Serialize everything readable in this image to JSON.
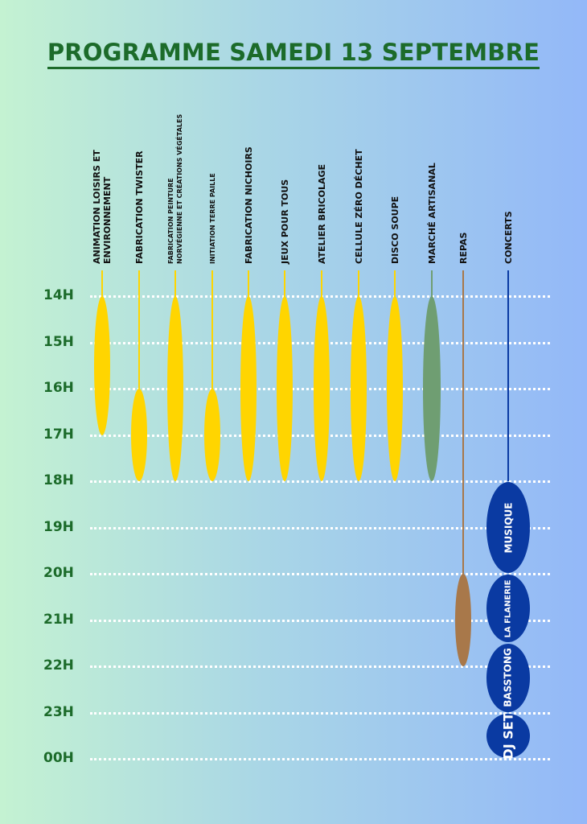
{
  "title": "PROGRAMME SAMEDI 13 SEPTEMBRE",
  "hours": [
    "14H",
    "15H",
    "16H",
    "17H",
    "18H",
    "19H",
    "20H",
    "21H",
    "22H",
    "23H",
    "00H"
  ],
  "activities": [
    {
      "label_lines": [
        "ANIMATION LOISIRS ET",
        "ENVIRONNEMENT"
      ],
      "start": "14H",
      "end": "17H",
      "color": "#ffd500"
    },
    {
      "label_lines": [
        "FABRICATION TWISTER"
      ],
      "start": "16H",
      "end": "18H",
      "color": "#ffd500"
    },
    {
      "label_lines": [
        "FABRICATION PEINTURE",
        "NORVÉGIENNE ET CRÉATIONS VÉGÉTALES"
      ],
      "start": "14H",
      "end": "18H",
      "color": "#ffd500"
    },
    {
      "label_lines": [
        "INITIATION TERRE PAILLE"
      ],
      "start": "16H",
      "end": "18H",
      "color": "#ffd500"
    },
    {
      "label_lines": [
        "FABRICATION NICHOIRS"
      ],
      "start": "14H",
      "end": "18H",
      "color": "#ffd500"
    },
    {
      "label_lines": [
        "JEUX POUR TOUS"
      ],
      "start": "14H",
      "end": "18H",
      "color": "#ffd500"
    },
    {
      "label_lines": [
        "ATELIER BRICOLAGE"
      ],
      "start": "14H",
      "end": "18H",
      "color": "#ffd500"
    },
    {
      "label_lines": [
        "CELLULE ZÉRO DÉCHET"
      ],
      "start": "14H",
      "end": "18H",
      "color": "#ffd500"
    },
    {
      "label_lines": [
        "DISCO SOUPE"
      ],
      "start": "14H",
      "end": "18H",
      "color": "#ffd500"
    },
    {
      "label_lines": [
        "MARCHÉ ARTISANAL"
      ],
      "start": "14H",
      "end": "18H",
      "color": "#6f9e72"
    },
    {
      "label_lines": [
        "REPAS"
      ],
      "start": "20H",
      "end": "22H",
      "color": "#a8784a"
    },
    {
      "label_lines": [
        "CONCERTS"
      ],
      "start": "18H",
      "end": "00H",
      "color": "#0a3aa2"
    }
  ],
  "concerts": [
    {
      "label": "MUSIQUE",
      "start": "18H",
      "end": "20H"
    },
    {
      "label": "LA FLANERIE",
      "start": "20H",
      "end": "21H30"
    },
    {
      "label": "BASSTONG",
      "start": "21H30",
      "end": "23H"
    },
    {
      "label": "DJ SET",
      "start": "23H",
      "end": "00H"
    }
  ],
  "colors": {
    "title": "#1c6b2a",
    "grid": "#ffffff",
    "concert_fill": "#0a3aa2"
  }
}
